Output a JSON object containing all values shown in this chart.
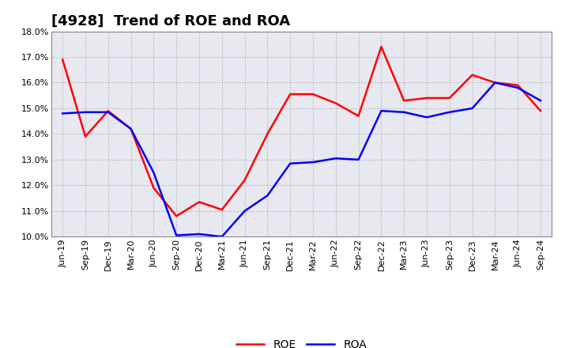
{
  "title": "[4928]  Trend of ROE and ROA",
  "labels": [
    "Jun-19",
    "Sep-19",
    "Dec-19",
    "Mar-20",
    "Jun-20",
    "Sep-20",
    "Dec-20",
    "Mar-21",
    "Jun-21",
    "Sep-21",
    "Dec-21",
    "Mar-22",
    "Jun-22",
    "Sep-22",
    "Dec-22",
    "Mar-23",
    "Jun-23",
    "Sep-23",
    "Dec-23",
    "Mar-24",
    "Jun-24",
    "Sep-24"
  ],
  "ROE": [
    16.9,
    13.9,
    14.9,
    14.2,
    11.9,
    10.8,
    11.35,
    11.05,
    12.2,
    14.0,
    15.55,
    15.55,
    15.2,
    14.7,
    17.4,
    15.3,
    15.4,
    15.4,
    16.3,
    16.0,
    15.9,
    14.9
  ],
  "ROA": [
    14.8,
    14.85,
    14.85,
    14.2,
    12.5,
    10.05,
    10.1,
    10.0,
    11.0,
    11.6,
    12.85,
    12.9,
    13.05,
    13.0,
    14.9,
    14.85,
    14.65,
    14.85,
    15.0,
    16.0,
    15.8,
    15.3
  ],
  "ROE_color": "#FF0000",
  "ROA_color": "#0000FF",
  "ylim": [
    10.0,
    18.0
  ],
  "yticks": [
    10.0,
    11.0,
    12.0,
    13.0,
    14.0,
    15.0,
    16.0,
    17.0,
    18.0
  ],
  "background_color": "#ffffff",
  "plot_bg_color": "#e8e8f0",
  "grid_color": "#999999",
  "title_fontsize": 13,
  "legend_fontsize": 10,
  "axis_fontsize": 8,
  "line_width": 1.8
}
